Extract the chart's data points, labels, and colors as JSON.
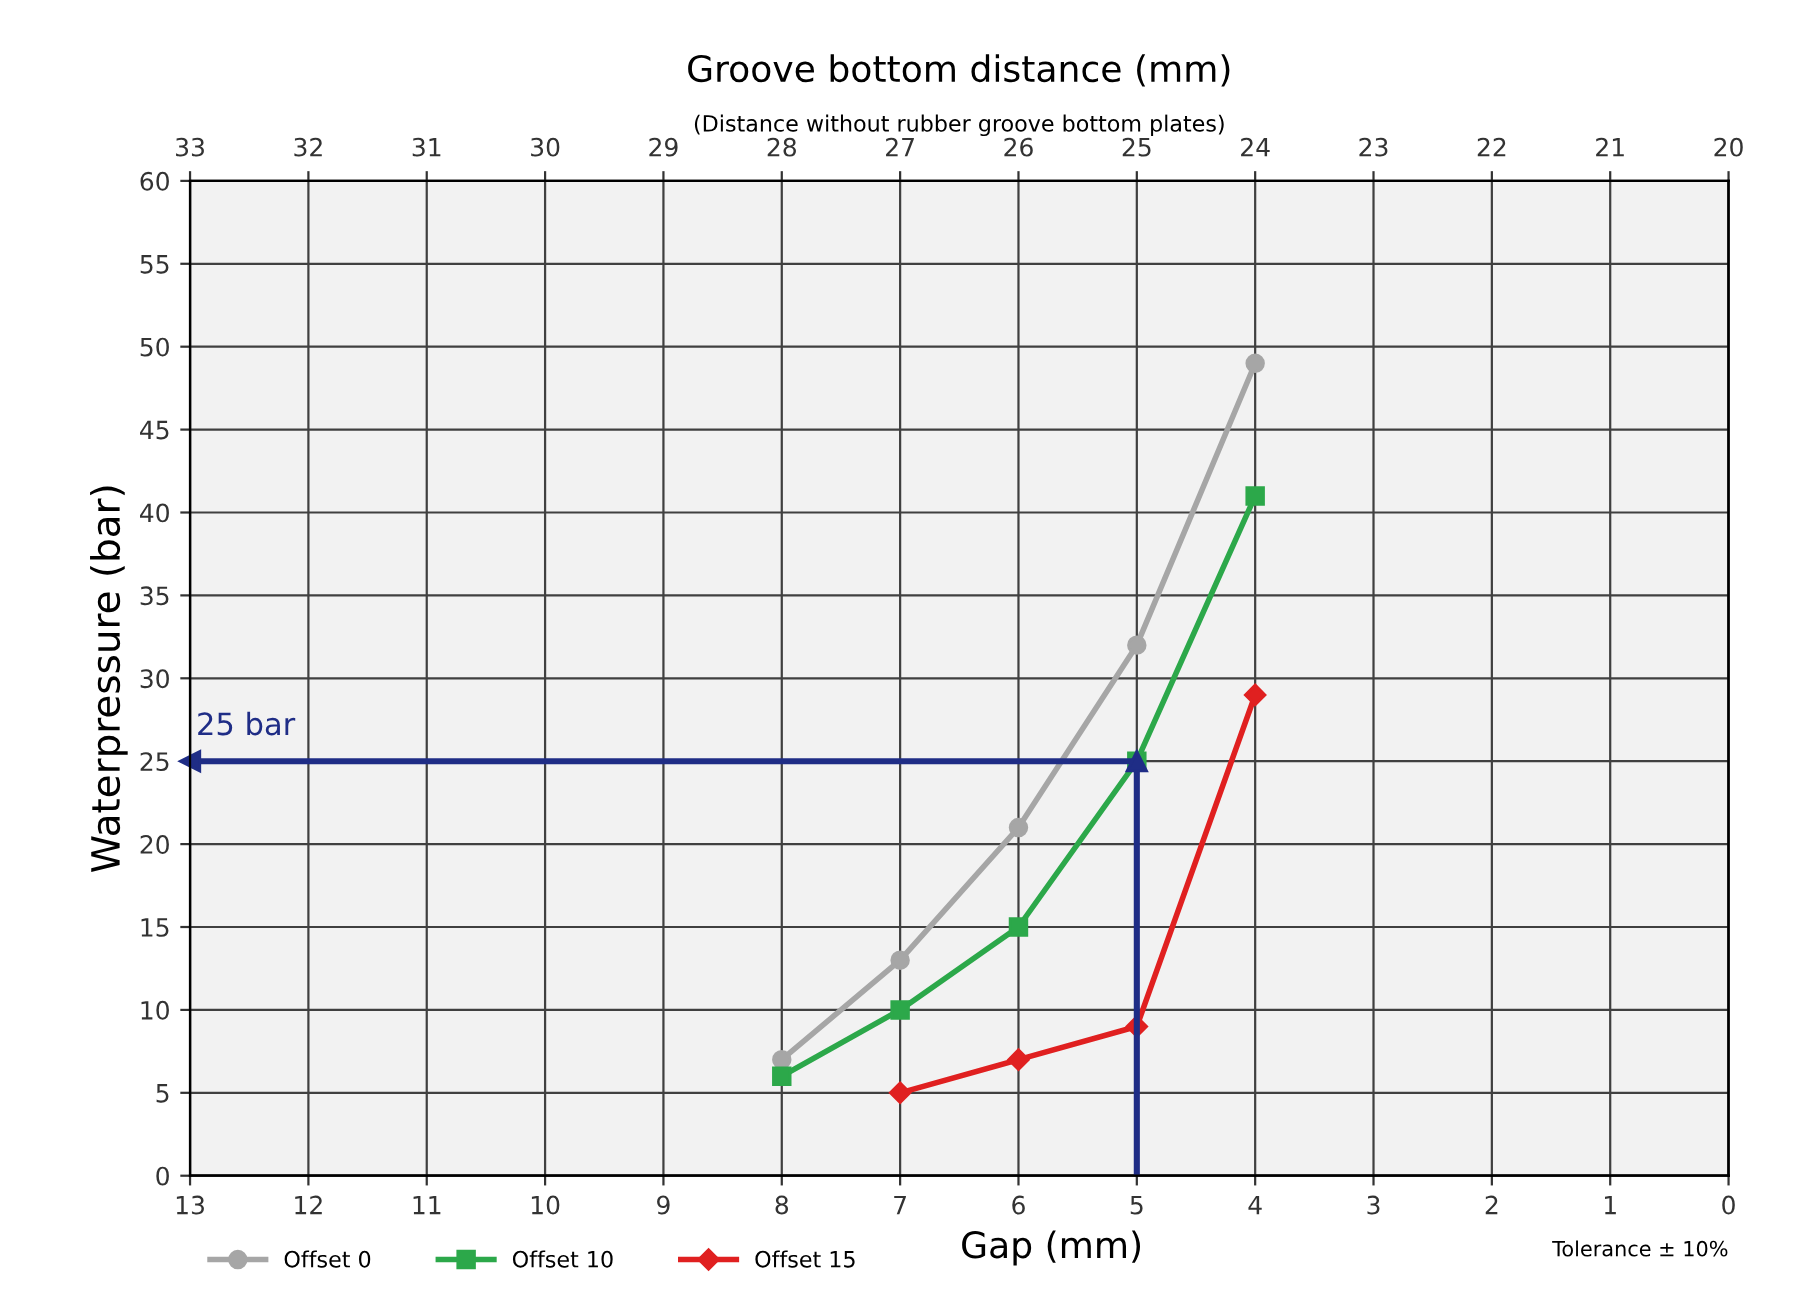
{
  "chart_data": {
    "type": "line",
    "xlabel": "Gap (mm)",
    "ylabel": "Waterpressure (bar)",
    "x2label": "Groove bottom distance (mm)",
    "subtitle": "(Distance without rubber groove bottom plates)",
    "xlim": [
      13,
      0
    ],
    "xticks": [
      13,
      12,
      11,
      10,
      9,
      8,
      7,
      6,
      5,
      4,
      3,
      2,
      1,
      0
    ],
    "x2lim": [
      33,
      20
    ],
    "x2ticks": [
      33,
      32,
      31,
      30,
      29,
      28,
      27,
      26,
      25,
      24,
      23,
      22,
      21,
      20
    ],
    "ylim": [
      0,
      60
    ],
    "yticks": [
      0,
      5,
      10,
      15,
      20,
      25,
      30,
      35,
      40,
      45,
      50,
      55,
      60
    ],
    "grid": true,
    "legend": "bottom left",
    "series": [
      {
        "name": "Offset 0",
        "color": "#a6a6a6",
        "marker": "circle",
        "x": [
          8,
          7,
          6,
          5,
          4
        ],
        "values": [
          7,
          13,
          21,
          32,
          49
        ]
      },
      {
        "name": "Offset 10",
        "color": "#2ca84a",
        "marker": "square",
        "x": [
          8,
          7,
          6,
          5,
          4
        ],
        "values": [
          6,
          10,
          15,
          25,
          41
        ]
      },
      {
        "name": "Offset 15",
        "color": "#e02020",
        "marker": "diamond",
        "x": [
          7,
          6,
          5,
          4
        ],
        "values": [
          5,
          7,
          9,
          29
        ]
      }
    ],
    "ref_lines": [
      {
        "axis": "y",
        "value": 25,
        "label": "25 bar",
        "color": "#1f2d86"
      },
      {
        "axis": "x",
        "value": 5,
        "color": "#1f2d86"
      }
    ],
    "annotations": [
      "Tolerance ± 10%"
    ]
  }
}
